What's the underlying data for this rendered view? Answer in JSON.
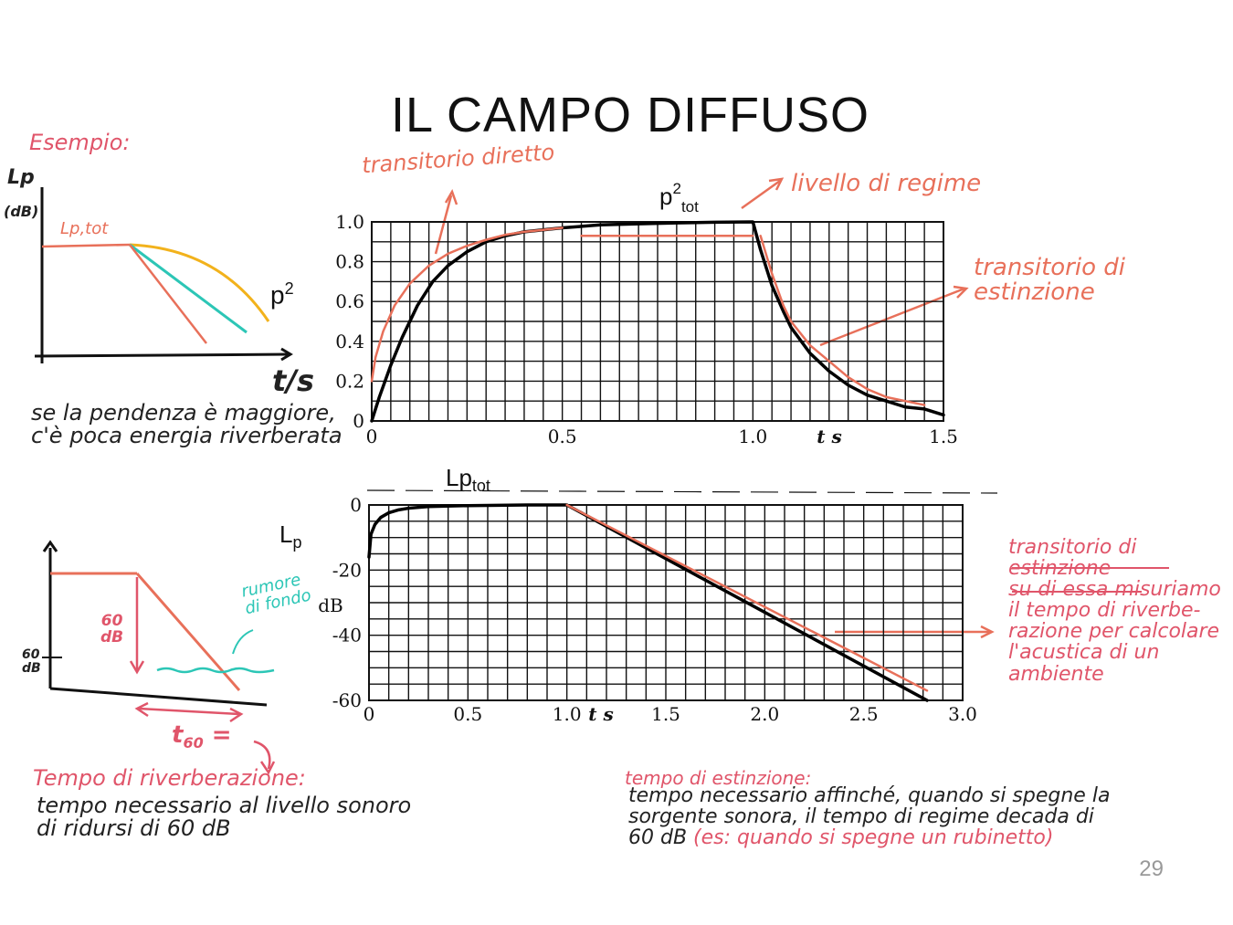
{
  "title": "IL CAMPO DIFFUSO",
  "page_number": "29",
  "example": {
    "label": "Esempio:",
    "y_axis_label": "Lp",
    "y_axis_unit": "(dB)",
    "level_label": "Lp,tot",
    "curve_label": "p",
    "curve_sup": "2",
    "x_axis_label": "t/s",
    "note_line1": "se la pendenza è maggiore,",
    "note_line2": "c'è poca energia riverberata"
  },
  "schematic": {
    "delta_label_line1": "60",
    "delta_label_line2": "dB",
    "y_mark_line1": "60",
    "y_mark_line2": "dB",
    "noise_line1": "rumore",
    "noise_line2": "di fondo",
    "t60_label": "t",
    "t60_sub": "60",
    "t60_eq": "="
  },
  "reverb_def": {
    "heading": "Tempo di riverberazione:",
    "line1": "tempo necessario al livello sonoro",
    "line2": "di ridursi di 60 dB"
  },
  "extinction_def": {
    "heading": "tempo di estinzione:",
    "line1": "tempo necessario affinché, quando si spegne la",
    "line2": "sorgente sonora, il tempo di regime decada di",
    "line3": "60 dB",
    "line3_extra": "(es: quando si spegne un rubinetto)"
  },
  "annotations": {
    "direct_transient": "transitorio diretto",
    "regime_level": "livello di regime",
    "extinction_transient_line1": "transitorio di",
    "extinction_transient_line2": "estinzione",
    "ext2_line1": "transitorio di",
    "ext2_line2": "estinzione",
    "ext2_line3": "su di essa misuriamo",
    "ext2_line4": "il tempo di riverbe-",
    "ext2_line5": "razione per calcolare",
    "ext2_line6": "l'acustica di un",
    "ext2_line7": "ambiente",
    "lp_tot_main": "Lp",
    "lp_tot_sub": "tot",
    "lp_main": "L",
    "lp_sub": "p"
  },
  "chart_data": [
    {
      "type": "line",
      "title": "",
      "xlabel": "t s",
      "ylabel": "",
      "top_label_main": "p",
      "top_label_sup": "2",
      "top_label_sub": "tot",
      "xlim": [
        0,
        1.5
      ],
      "ylim": [
        0,
        1.0
      ],
      "x_ticks": [
        {
          "v": 0,
          "label": "0"
        },
        {
          "v": 0.5,
          "label": "0.5"
        },
        {
          "v": 1.0,
          "label": "1.0"
        },
        {
          "v": 1.5,
          "label": "1.5"
        }
      ],
      "y_ticks": [
        {
          "v": 0,
          "label": "0"
        },
        {
          "v": 0.2,
          "label": "0.2"
        },
        {
          "v": 0.4,
          "label": "0.4"
        },
        {
          "v": 0.6,
          "label": "0.6"
        },
        {
          "v": 0.8,
          "label": "0.8"
        },
        {
          "v": 1.0,
          "label": "1.0"
        }
      ],
      "grid": true,
      "x_grid_step": 0.05,
      "y_grid_step": 0.1,
      "series": [
        {
          "color": "#000000",
          "x": [
            0,
            0.02,
            0.05,
            0.08,
            0.12,
            0.16,
            0.2,
            0.25,
            0.3,
            0.35,
            0.4,
            0.5,
            0.6,
            0.7,
            0.8,
            0.9,
            1.0,
            1.02,
            1.05,
            1.08,
            1.1,
            1.15,
            1.2,
            1.25,
            1.3,
            1.35,
            1.4,
            1.45,
            1.5
          ],
          "y": [
            0,
            0.12,
            0.28,
            0.42,
            0.58,
            0.7,
            0.78,
            0.85,
            0.9,
            0.93,
            0.95,
            0.97,
            0.985,
            0.99,
            0.995,
            0.998,
            1.0,
            0.86,
            0.68,
            0.55,
            0.47,
            0.34,
            0.25,
            0.18,
            0.13,
            0.1,
            0.07,
            0.06,
            0.03
          ]
        },
        {
          "color": "#e8705a",
          "x": [
            0,
            0.01,
            0.03,
            0.06,
            0.1,
            0.15,
            0.2,
            0.25,
            0.3,
            0.35,
            0.4,
            0.45,
            0.5
          ],
          "y": [
            0.2,
            0.32,
            0.45,
            0.58,
            0.69,
            0.78,
            0.84,
            0.88,
            0.91,
            0.935,
            0.95,
            0.96,
            0.97
          ]
        },
        {
          "color": "#e8705a",
          "x": [
            0.55,
            1.0
          ],
          "y": [
            0.93,
            0.93
          ]
        },
        {
          "color": "#e8705a",
          "x": [
            1.02,
            1.05,
            1.08,
            1.1,
            1.15,
            1.2,
            1.25,
            1.3,
            1.35,
            1.4,
            1.45
          ],
          "y": [
            0.93,
            0.74,
            0.58,
            0.5,
            0.38,
            0.3,
            0.22,
            0.16,
            0.12,
            0.1,
            0.08
          ]
        }
      ]
    },
    {
      "type": "line",
      "title": "",
      "xlabel": "t s",
      "ylabel": "dB",
      "xlim": [
        0,
        3.0
      ],
      "ylim": [
        -60,
        0
      ],
      "x_ticks": [
        {
          "v": 0,
          "label": "0"
        },
        {
          "v": 0.5,
          "label": "0.5"
        },
        {
          "v": 1.0,
          "label": "1.0"
        },
        {
          "v": 1.5,
          "label": "1.5"
        },
        {
          "v": 2.0,
          "label": "2.0"
        },
        {
          "v": 2.5,
          "label": "2.5"
        },
        {
          "v": 3.0,
          "label": "3.0"
        }
      ],
      "y_ticks": [
        {
          "v": 0,
          "label": "0"
        },
        {
          "v": -20,
          "label": "-20"
        },
        {
          "v": -40,
          "label": "-40"
        },
        {
          "v": -60,
          "label": "-60"
        }
      ],
      "grid": true,
      "x_grid_step": 0.1,
      "y_grid_step": 5,
      "series": [
        {
          "color": "#000000",
          "x": [
            0,
            0.01,
            0.03,
            0.06,
            0.1,
            0.15,
            0.2,
            0.3,
            0.5,
            0.8,
            1.0,
            2.82
          ],
          "y": [
            -16,
            -9,
            -6,
            -3.8,
            -2.4,
            -1.5,
            -1,
            -0.5,
            -0.2,
            0,
            0,
            -60
          ]
        },
        {
          "color": "#e8705a",
          "x": [
            1.0,
            2.82
          ],
          "y": [
            0,
            -57
          ]
        }
      ]
    }
  ]
}
